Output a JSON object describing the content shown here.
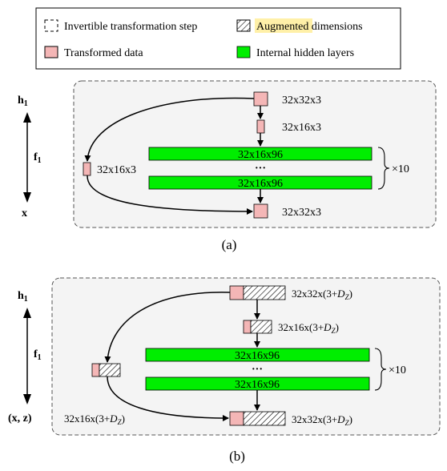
{
  "colors": {
    "transformed": "#f4b6b6",
    "hidden": "#00ee00",
    "augmented_highlight": "#fff0a8",
    "panel_bg": "#f4f4f4"
  },
  "legend": {
    "invertible": "Invertible transformation step",
    "augmented_word": "Augmented",
    "augmented_rest": " dimensions",
    "transformed": "Transformed data",
    "hidden": "Internal hidden layers"
  },
  "panel_a": {
    "left_top": "h",
    "left_top_sub": "1",
    "left_mid": "f",
    "left_mid_sub": "1",
    "left_bottom": "x",
    "top_label": "32x32x3",
    "squeeze_label": "32x16x3",
    "side_label": "32x16x3",
    "hidden1": "32x16x96",
    "dots": "···",
    "hidden2": "32x16x96",
    "repeat": "×10",
    "bottom_label": "32x32x3",
    "caption": "(a)"
  },
  "panel_b": {
    "left_top": "h",
    "left_top_sub": "1",
    "left_mid": "f",
    "left_mid_sub": "1",
    "left_bottom": "(x, z)",
    "top_label_pre": "32x32x(3+",
    "squeeze_label_pre": "32x16x(3+",
    "side_label_pre": "32x16x(3+",
    "bottom_label_pre": "32x32x(3+",
    "dz_main": "D",
    "dz_sub": "Z",
    "close": ")",
    "hidden1": "32x16x96",
    "dots": "···",
    "hidden2": "32x16x96",
    "repeat": "×10",
    "caption": "(b)"
  }
}
